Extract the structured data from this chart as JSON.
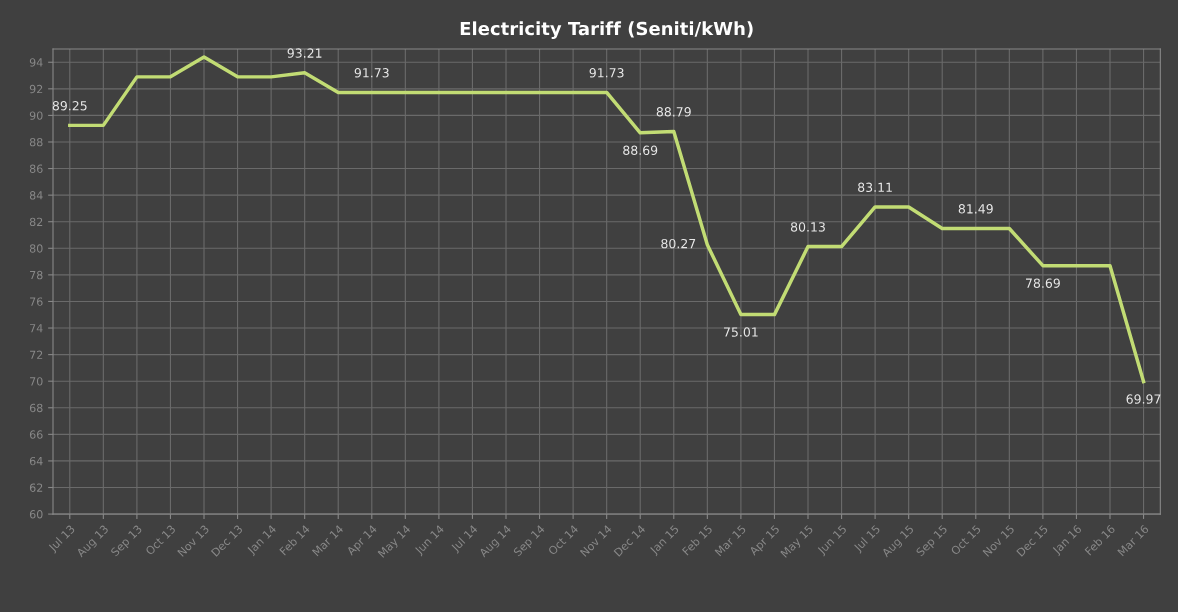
{
  "chart_data": {
    "type": "line",
    "title": "Electricity Tariff (Seniti/kWh)",
    "categories": [
      "Jul 13",
      "Aug 13",
      "Sep 13",
      "Oct 13",
      "Nov 13",
      "Dec 13",
      "Jan 14",
      "Feb 14",
      "Mar 14",
      "Apr 14",
      "May 14",
      "Jun 14",
      "Jul 14",
      "Aug 14",
      "Sep 14",
      "Oct 14",
      "Nov 14",
      "Dec 14",
      "Jan 15",
      "Feb 15",
      "Mar 15",
      "Apr 15",
      "May 15",
      "Jun 15",
      "Jul 15",
      "Aug 15",
      "Sep 15",
      "Oct 15",
      "Nov 15",
      "Dec 15",
      "Jan 16",
      "Feb 16",
      "Mar 16"
    ],
    "series": [
      {
        "color": "#c2dc74",
        "values": [
          89.25,
          89.25,
          92.9,
          92.9,
          94.4,
          92.9,
          92.9,
          93.21,
          91.73,
          91.73,
          91.73,
          91.73,
          91.73,
          91.73,
          91.73,
          91.73,
          91.73,
          88.69,
          88.79,
          80.27,
          75.01,
          75.01,
          80.13,
          80.13,
          83.11,
          83.11,
          81.49,
          81.49,
          81.49,
          78.69,
          78.69,
          78.69,
          69.97
        ],
        "value_labels": [
          "89.25",
          null,
          null,
          null,
          null,
          null,
          null,
          "93.21",
          null,
          "91.73",
          null,
          null,
          null,
          null,
          null,
          null,
          "91.73",
          "88.69",
          "88.79",
          "80.27",
          "75.01",
          null,
          "80.13",
          null,
          "83.11",
          null,
          null,
          "81.49",
          null,
          "78.69",
          null,
          null,
          "69.97"
        ]
      }
    ],
    "ylim": [
      60,
      95
    ],
    "yticks": [
      60,
      62,
      64,
      66,
      68,
      70,
      72,
      74,
      76,
      78,
      80,
      82,
      84,
      86,
      88,
      90,
      92,
      94
    ],
    "grid": true,
    "marker": "none",
    "line_style": "solid"
  }
}
